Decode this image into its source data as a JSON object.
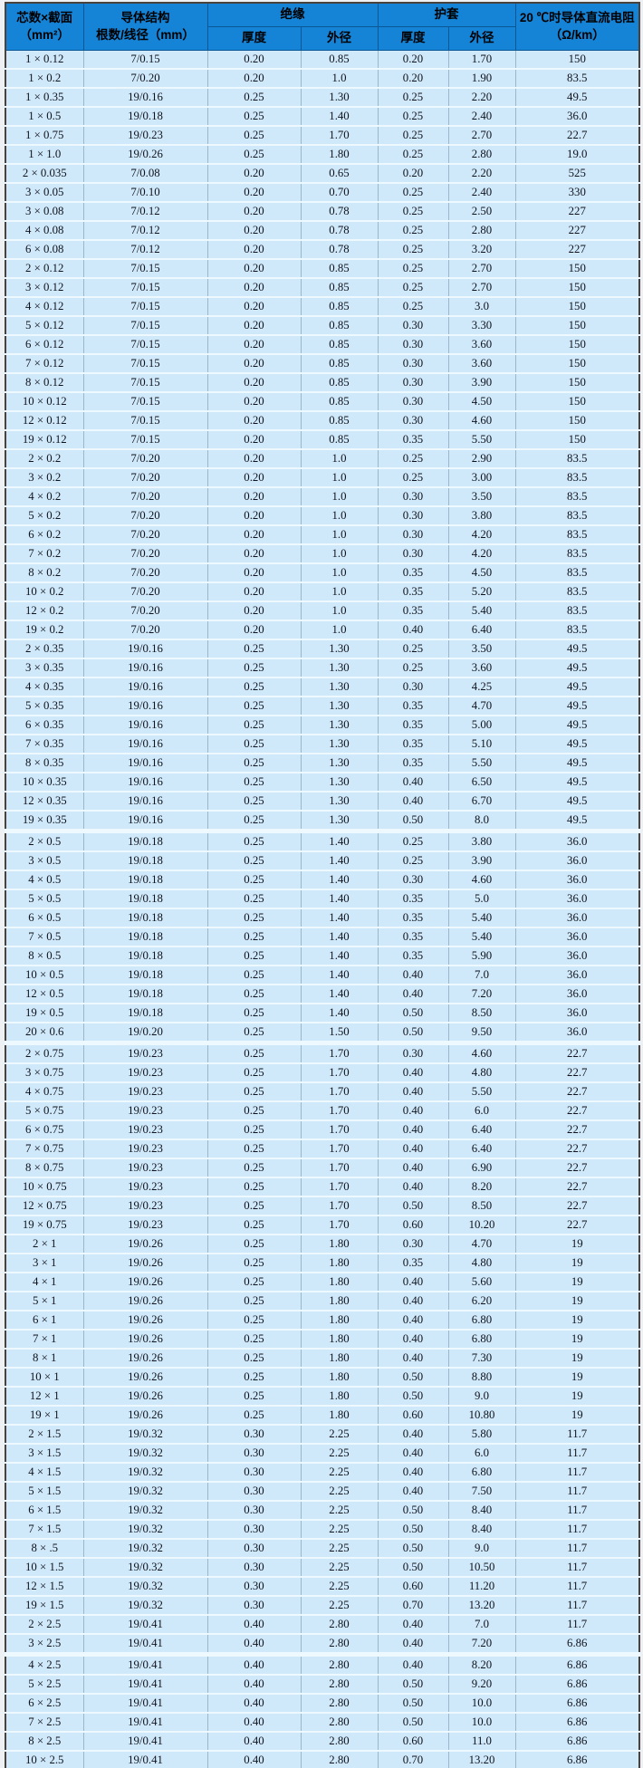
{
  "colors": {
    "header_bg": "#1583d6",
    "header_grid": "#0a5795",
    "row_bg": "#cfe9fb",
    "vertical_grid": "#9cb7c9",
    "row_divider": "#eef8ff",
    "outer_border": "#4b423b",
    "text": "#10131c"
  },
  "chart_data": {
    "type": "table",
    "columns": [
      "芯数×截面（mm²）",
      "导体结构 根数/线径（mm）",
      "绝缘 厚度",
      "绝缘 外径",
      "护套 厚度",
      "护套 外径",
      "20 ℃时导体直流电阻（Ω/km）"
    ],
    "header": {
      "core": {
        "line1": "芯数×截面",
        "line2": "（mm²）"
      },
      "conductor": {
        "line1": "导体结构",
        "line2": "根数/线径（mm）"
      },
      "insulation": "绝缘",
      "sheath": "护套",
      "resistance": {
        "line1": "20 ℃时导体直流电阻",
        "line2": "（Ω/km）"
      },
      "subheaders": [
        "厚度",
        "外径",
        "厚度",
        "外径"
      ]
    },
    "rows": [
      [
        "1 × 0.12",
        "7/0.15",
        "0.20",
        "0.85",
        "0.20",
        "1.70",
        "150"
      ],
      [
        "1 × 0.2",
        "7/0.20",
        "0.20",
        "1.0",
        "0.20",
        "1.90",
        "83.5"
      ],
      [
        "1 × 0.35",
        "19/0.16",
        "0.25",
        "1.30",
        "0.25",
        "2.20",
        "49.5"
      ],
      [
        "1 × 0.5",
        "19/0.18",
        "0.25",
        "1.40",
        "0.25",
        "2.40",
        "36.0"
      ],
      [
        "1 × 0.75",
        "19/0.23",
        "0.25",
        "1.70",
        "0.25",
        "2.70",
        "22.7"
      ],
      [
        "1 × 1.0",
        "19/0.26",
        "0.25",
        "1.80",
        "0.25",
        "2.80",
        "19.0"
      ],
      [
        "2 × 0.035",
        "7/0.08",
        "0.20",
        "0.65",
        "0.20",
        "2.20",
        "525"
      ],
      [
        "3 × 0.05",
        "7/0.10",
        "0.20",
        "0.70",
        "0.25",
        "2.40",
        "330"
      ],
      [
        "3 × 0.08",
        "7/0.12",
        "0.20",
        "0.78",
        "0.25",
        "2.50",
        "227"
      ],
      [
        "4 × 0.08",
        "7/0.12",
        "0.20",
        "0.78",
        "0.25",
        "2.80",
        "227"
      ],
      [
        "6 × 0.08",
        "7/0.12",
        "0.20",
        "0.78",
        "0.25",
        "3.20",
        "227"
      ],
      [
        "2 × 0.12",
        "7/0.15",
        "0.20",
        "0.85",
        "0.25",
        "2.70",
        "150"
      ],
      [
        "3 × 0.12",
        "7/0.15",
        "0.20",
        "0.85",
        "0.25",
        "2.70",
        "150"
      ],
      [
        "4 × 0.12",
        "7/0.15",
        "0.20",
        "0.85",
        "0.25",
        "3.0",
        "150"
      ],
      [
        "5 × 0.12",
        "7/0.15",
        "0.20",
        "0.85",
        "0.30",
        "3.30",
        "150"
      ],
      [
        "6 × 0.12",
        "7/0.15",
        "0.20",
        "0.85",
        "0.30",
        "3.60",
        "150"
      ],
      [
        "7 × 0.12",
        "7/0.15",
        "0.20",
        "0.85",
        "0.30",
        "3.60",
        "150"
      ],
      [
        "8 × 0.12",
        "7/0.15",
        "0.20",
        "0.85",
        "0.30",
        "3.90",
        "150"
      ],
      [
        "10 × 0.12",
        "7/0.15",
        "0.20",
        "0.85",
        "0.30",
        "4.50",
        "150"
      ],
      [
        "12 × 0.12",
        "7/0.15",
        "0.20",
        "0.85",
        "0.30",
        "4.60",
        "150"
      ],
      [
        "19 × 0.12",
        "7/0.15",
        "0.20",
        "0.85",
        "0.35",
        "5.50",
        "150"
      ],
      [
        "2 × 0.2",
        "7/0.20",
        "0.20",
        "1.0",
        "0.25",
        "2.90",
        "83.5"
      ],
      [
        "3 × 0.2",
        "7/0.20",
        "0.20",
        "1.0",
        "0.25",
        "3.00",
        "83.5"
      ],
      [
        "4 × 0.2",
        "7/0.20",
        "0.20",
        "1.0",
        "0.30",
        "3.50",
        "83.5"
      ],
      [
        "5 × 0.2",
        "7/0.20",
        "0.20",
        "1.0",
        "0.30",
        "3.80",
        "83.5"
      ],
      [
        "6 × 0.2",
        "7/0.20",
        "0.20",
        "1.0",
        "0.30",
        "4.20",
        "83.5"
      ],
      [
        "7 × 0.2",
        "7/0.20",
        "0.20",
        "1.0",
        "0.30",
        "4.20",
        "83.5"
      ],
      [
        "8 × 0.2",
        "7/0.20",
        "0.20",
        "1.0",
        "0.35",
        "4.50",
        "83.5"
      ],
      [
        "10 × 0.2",
        "7/0.20",
        "0.20",
        "1.0",
        "0.35",
        "5.20",
        "83.5"
      ],
      [
        "12 × 0.2",
        "7/0.20",
        "0.20",
        "1.0",
        "0.35",
        "5.40",
        "83.5"
      ],
      [
        "19 × 0.2",
        "7/0.20",
        "0.20",
        "1.0",
        "0.40",
        "6.40",
        "83.5"
      ],
      [
        "2 × 0.35",
        "19/0.16",
        "0.25",
        "1.30",
        "0.25",
        "3.50",
        "49.5"
      ],
      [
        "3 × 0.35",
        "19/0.16",
        "0.25",
        "1.30",
        "0.25",
        "3.60",
        "49.5"
      ],
      [
        "4 × 0.35",
        "19/0.16",
        "0.25",
        "1.30",
        "0.30",
        "4.25",
        "49.5"
      ],
      [
        "5 × 0.35",
        "19/0.16",
        "0.25",
        "1.30",
        "0.35",
        "4.70",
        "49.5"
      ],
      [
        "6 × 0.35",
        "19/0.16",
        "0.25",
        "1.30",
        "0.35",
        "5.00",
        "49.5"
      ],
      [
        "7 × 0.35",
        "19/0.16",
        "0.25",
        "1.30",
        "0.35",
        "5.10",
        "49.5"
      ],
      [
        "8 × 0.35",
        "19/0.16",
        "0.25",
        "1.30",
        "0.35",
        "5.50",
        "49.5"
      ],
      [
        "10 × 0.35",
        "19/0.16",
        "0.25",
        "1.30",
        "0.40",
        "6.50",
        "49.5"
      ],
      [
        "12 × 0.35",
        "19/0.16",
        "0.25",
        "1.30",
        "0.40",
        "6.70",
        "49.5"
      ],
      [
        "19 × 0.35",
        "19/0.16",
        "0.25",
        "1.30",
        "0.50",
        "8.0",
        "49.5"
      ],
      [
        "2 × 0.5",
        "19/0.18",
        "0.25",
        "1.40",
        "0.25",
        "3.80",
        "36.0"
      ],
      [
        "3 × 0.5",
        "19/0.18",
        "0.25",
        "1.40",
        "0.25",
        "3.90",
        "36.0"
      ],
      [
        "4 × 0.5",
        "19/0.18",
        "0.25",
        "1.40",
        "0.30",
        "4.60",
        "36.0"
      ],
      [
        "5 × 0.5",
        "19/0.18",
        "0.25",
        "1.40",
        "0.35",
        "5.0",
        "36.0"
      ],
      [
        "6 × 0.5",
        "19/0.18",
        "0.25",
        "1.40",
        "0.35",
        "5.40",
        "36.0"
      ],
      [
        "7 × 0.5",
        "19/0.18",
        "0.25",
        "1.40",
        "0.35",
        "5.40",
        "36.0"
      ],
      [
        "8 × 0.5",
        "19/0.18",
        "0.25",
        "1.40",
        "0.35",
        "5.90",
        "36.0"
      ],
      [
        "10 × 0.5",
        "19/0.18",
        "0.25",
        "1.40",
        "0.40",
        "7.0",
        "36.0"
      ],
      [
        "12 × 0.5",
        "19/0.18",
        "0.25",
        "1.40",
        "0.40",
        "7.20",
        "36.0"
      ],
      [
        "19 × 0.5",
        "19/0.18",
        "0.25",
        "1.40",
        "0.50",
        "8.50",
        "36.0"
      ],
      [
        "20 × 0.6",
        "19/0.20",
        "0.25",
        "1.50",
        "0.50",
        "9.50",
        "36.0"
      ],
      [
        "2 × 0.75",
        "19/0.23",
        "0.25",
        "1.70",
        "0.30",
        "4.60",
        "22.7"
      ],
      [
        "3 × 0.75",
        "19/0.23",
        "0.25",
        "1.70",
        "0.40",
        "4.80",
        "22.7"
      ],
      [
        "4 × 0.75",
        "19/0.23",
        "0.25",
        "1.70",
        "0.40",
        "5.50",
        "22.7"
      ],
      [
        "5 × 0.75",
        "19/0.23",
        "0.25",
        "1.70",
        "0.40",
        "6.0",
        "22.7"
      ],
      [
        "6 × 0.75",
        "19/0.23",
        "0.25",
        "1.70",
        "0.40",
        "6.40",
        "22.7"
      ],
      [
        "7 × 0.75",
        "19/0.23",
        "0.25",
        "1.70",
        "0.40",
        "6.40",
        "22.7"
      ],
      [
        "8 × 0.75",
        "19/0.23",
        "0.25",
        "1.70",
        "0.40",
        "6.90",
        "22.7"
      ],
      [
        "10 × 0.75",
        "19/0.23",
        "0.25",
        "1.70",
        "0.40",
        "8.20",
        "22.7"
      ],
      [
        "12 × 0.75",
        "19/0.23",
        "0.25",
        "1.70",
        "0.50",
        "8.50",
        "22.7"
      ],
      [
        "19 × 0.75",
        "19/0.23",
        "0.25",
        "1.70",
        "0.60",
        "10.20",
        "22.7"
      ],
      [
        "2 × 1",
        "19/0.26",
        "0.25",
        "1.80",
        "0.30",
        "4.70",
        "19"
      ],
      [
        "3 × 1",
        "19/0.26",
        "0.25",
        "1.80",
        "0.35",
        "4.80",
        "19"
      ],
      [
        "4 × 1",
        "19/0.26",
        "0.25",
        "1.80",
        "0.40",
        "5.60",
        "19"
      ],
      [
        "5 × 1",
        "19/0.26",
        "0.25",
        "1.80",
        "0.40",
        "6.20",
        "19"
      ],
      [
        "6 × 1",
        "19/0.26",
        "0.25",
        "1.80",
        "0.40",
        "6.80",
        "19"
      ],
      [
        "7 × 1",
        "19/0.26",
        "0.25",
        "1.80",
        "0.40",
        "6.80",
        "19"
      ],
      [
        "8 × 1",
        "19/0.26",
        "0.25",
        "1.80",
        "0.40",
        "7.30",
        "19"
      ],
      [
        "10 × 1",
        "19/0.26",
        "0.25",
        "1.80",
        "0.50",
        "8.80",
        "19"
      ],
      [
        "12 × 1",
        "19/0.26",
        "0.25",
        "1.80",
        "0.50",
        "9.0",
        "19"
      ],
      [
        "19 × 1",
        "19/0.26",
        "0.25",
        "1.80",
        "0.60",
        "10.80",
        "19"
      ],
      [
        "2 × 1.5",
        "19/0.32",
        "0.30",
        "2.25",
        "0.40",
        "5.80",
        "11.7"
      ],
      [
        "3 × 1.5",
        "19/0.32",
        "0.30",
        "2.25",
        "0.40",
        "6.0",
        "11.7"
      ],
      [
        "4 × 1.5",
        "19/0.32",
        "0.30",
        "2.25",
        "0.40",
        "6.80",
        "11.7"
      ],
      [
        "5 × 1.5",
        "19/0.32",
        "0.30",
        "2.25",
        "0.40",
        "7.50",
        "11.7"
      ],
      [
        "6 × 1.5",
        "19/0.32",
        "0.30",
        "2.25",
        "0.50",
        "8.40",
        "11.7"
      ],
      [
        "7 × 1.5",
        "19/0.32",
        "0.30",
        "2.25",
        "0.50",
        "8.40",
        "11.7"
      ],
      [
        "8 × .5",
        "19/0.32",
        "0.30",
        "2.25",
        "0.50",
        "9.0",
        "11.7"
      ],
      [
        "10 × 1.5",
        "19/0.32",
        "0.30",
        "2.25",
        "0.50",
        "10.50",
        "11.7"
      ],
      [
        "12 × 1.5",
        "19/0.32",
        "0.30",
        "2.25",
        "0.60",
        "11.20",
        "11.7"
      ],
      [
        "19 × 1.5",
        "19/0.32",
        "0.30",
        "2.25",
        "0.70",
        "13.20",
        "11.7"
      ],
      [
        "2 × 2.5",
        "19/0.41",
        "0.40",
        "2.80",
        "0.40",
        "7.0",
        "11.7"
      ],
      [
        "3 × 2.5",
        "19/0.41",
        "0.40",
        "2.80",
        "0.40",
        "7.20",
        "6.86"
      ],
      [
        "4 × 2.5",
        "19/0.41",
        "0.40",
        "2.80",
        "0.40",
        "8.20",
        "6.86"
      ],
      [
        "5 × 2.5",
        "19/0.41",
        "0.40",
        "2.80",
        "0.50",
        "9.20",
        "6.86"
      ],
      [
        "6 × 2.5",
        "19/0.41",
        "0.40",
        "2.80",
        "0.50",
        "10.0",
        "6.86"
      ],
      [
        "7 × 2.5",
        "19/0.41",
        "0.40",
        "2.80",
        "0.50",
        "10.0",
        "6.86"
      ],
      [
        "8 × 2.5",
        "19/0.41",
        "0.40",
        "2.80",
        "0.60",
        "11.0",
        "6.86"
      ],
      [
        "10 × 2.5",
        "19/0.41",
        "0.40",
        "2.80",
        "0.70",
        "13.20",
        "6.86"
      ]
    ],
    "section_breaks_after": [
      40,
      51,
      83
    ]
  }
}
